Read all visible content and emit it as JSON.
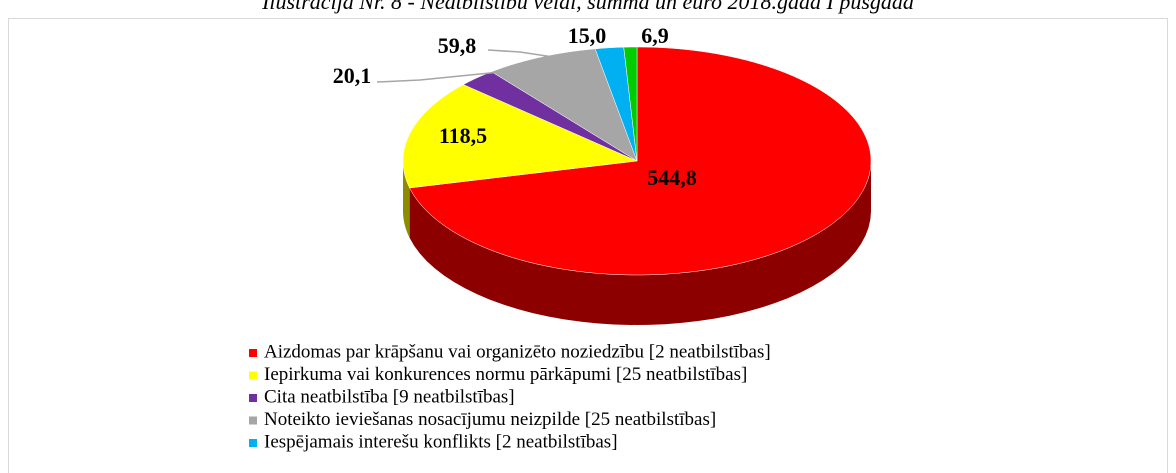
{
  "chart_data": {
    "type": "pie3d",
    "title": "Ilustrācija Nr. 8 - Neatbilstību veidi, summa un euro 2018.gada I pusgadā",
    "categories": [
      "Aizdomas par krāpšanu vai organizēto noziedzību [2 neatbilstības]",
      "Iepirkuma vai konkurences normu pārkāpumi [25 neatbilstības]",
      "Cita neatbilstība  [9 neatbilstības]",
      "Noteikto ieviešanas nosacījumu neizpilde [25 neatbilstības]",
      "Iespējamais interešu konflikts [2 neatbilstības]",
      null
    ],
    "values": [
      544.8,
      118.5,
      20.1,
      59.8,
      15.0,
      6.9
    ],
    "value_labels": [
      "544,8",
      "118,5",
      "20,1",
      "59,8",
      "15,0",
      "6,9"
    ],
    "colors": [
      "#ff0000",
      "#ffff00",
      "#7030a0",
      "#a6a6a6",
      "#00b0f0",
      "#00cc00"
    ],
    "legend": "bottom"
  }
}
